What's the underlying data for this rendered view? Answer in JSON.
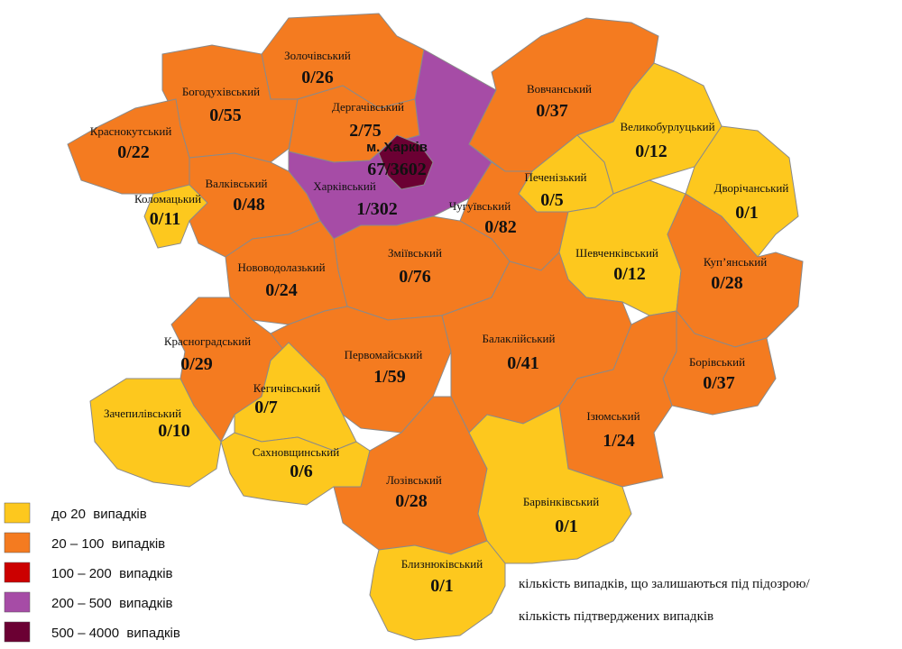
{
  "districts": [
    {
      "name": "Золочівський",
      "value": "0/26",
      "color": "#f47b20"
    },
    {
      "name": "Богодухівський",
      "value": "0/55",
      "color": "#f47b20"
    },
    {
      "name": "Краснокутський",
      "value": "0/22",
      "color": "#f47b20"
    },
    {
      "name": "Дергачівський",
      "value": "2/75",
      "color": "#f47b20"
    },
    {
      "name": "Харківський",
      "value": "1/302",
      "color": "#a64ca6"
    },
    {
      "name": "м. Харків",
      "value": "67/3602",
      "color": "#6b0033"
    },
    {
      "name": "Вовчанський",
      "value": "0/37",
      "color": "#f47b20"
    },
    {
      "name": "Великобурлуцький",
      "value": "0/12",
      "color": "#fdc81e"
    },
    {
      "name": "Дворічанський",
      "value": "0/1",
      "color": "#fdc81e"
    },
    {
      "name": "Печенізький",
      "value": "0/5",
      "color": "#fdc81e"
    },
    {
      "name": "Чугуївський",
      "value": "0/82",
      "color": "#f47b20"
    },
    {
      "name": "Коломацький",
      "value": "0/11",
      "color": "#fdc81e"
    },
    {
      "name": "Валківський",
      "value": "0/48",
      "color": "#f47b20"
    },
    {
      "name": "Зміївський",
      "value": "0/76",
      "color": "#f47b20"
    },
    {
      "name": "Нововодолазький",
      "value": "0/24",
      "color": "#f47b20"
    },
    {
      "name": "Шевченківський",
      "value": "0/12",
      "color": "#fdc81e"
    },
    {
      "name": "Куп’янський",
      "value": "0/28",
      "color": "#f47b20"
    },
    {
      "name": "Красноградський",
      "value": "0/29",
      "color": "#f47b20"
    },
    {
      "name": "Первомайський",
      "value": "1/59",
      "color": "#f47b20"
    },
    {
      "name": "Балаклійський",
      "value": "0/41",
      "color": "#f47b20"
    },
    {
      "name": "Борівський",
      "value": "0/37",
      "color": "#f47b20"
    },
    {
      "name": "Кегичівський",
      "value": "0/7",
      "color": "#fdc81e"
    },
    {
      "name": "Зачепилівський",
      "value": "0/10",
      "color": "#fdc81e"
    },
    {
      "name": "Ізюмський",
      "value": "1/24",
      "color": "#f47b20"
    },
    {
      "name": "Сахновщинський",
      "value": "0/6",
      "color": "#fdc81e"
    },
    {
      "name": "Лозівський",
      "value": "0/28",
      "color": "#f47b20"
    },
    {
      "name": "Барвінківський",
      "value": "0/1",
      "color": "#fdc81e"
    },
    {
      "name": "Близнюківський",
      "value": "0/1",
      "color": "#fdc81e"
    }
  ],
  "legend": [
    {
      "label": "до 20  випадків",
      "color": "#fdc81e"
    },
    {
      "label": "20 – 100  випадків",
      "color": "#f47b20"
    },
    {
      "label": "100 – 200  випадків",
      "color": "#cc0000"
    },
    {
      "label": "200 – 500  випадків",
      "color": "#a64ca6"
    },
    {
      "label": "500 – 4000  випадків",
      "color": "#6b0033"
    }
  ],
  "note": [
    "кількість випадків, що залишаються під підозрою/",
    "кількість підтверджених випадків"
  ]
}
